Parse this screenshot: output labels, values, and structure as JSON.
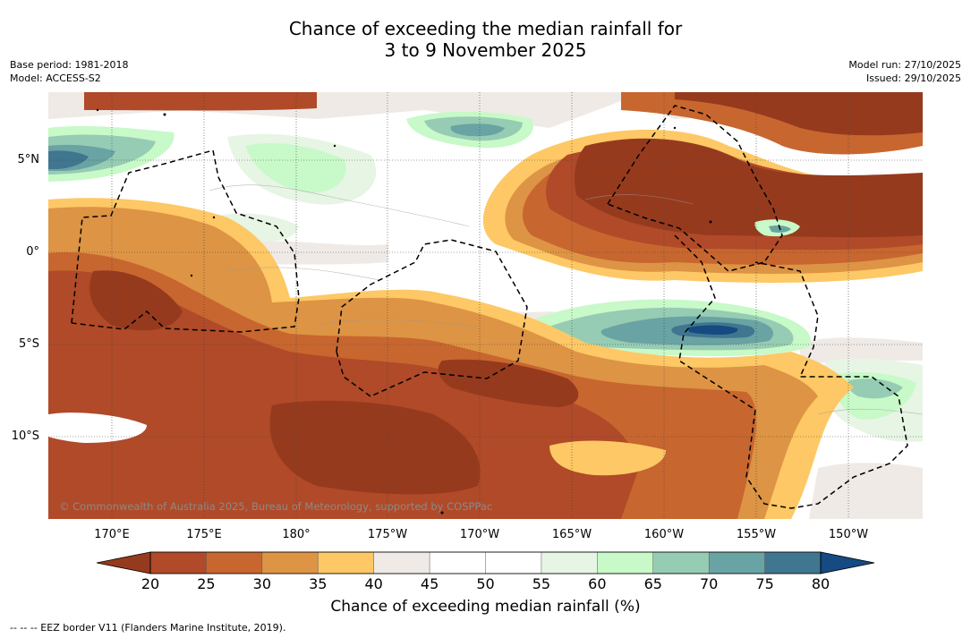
{
  "title": {
    "line1": "Chance of exceeding the median rainfall for",
    "line2": "3 to 9 November 2025"
  },
  "meta_left": {
    "base_period": "Base period: 1981-2018",
    "model": "Model: ACCESS-S2"
  },
  "meta_right": {
    "model_run": "Model run: 27/10/2025",
    "issued": "Issued: 29/10/2025"
  },
  "copyright": "© Commonwealth of Australia 2025, Bureau of Meteorology, supported by COSPPac",
  "lat_labels": [
    "5°N",
    "0°",
    "5°S",
    "10°S"
  ],
  "lon_labels": [
    "170°E",
    "175°E",
    "180°",
    "175°W",
    "170°W",
    "165°W",
    "160°W",
    "155°W",
    "150°W"
  ],
  "colorbar": {
    "ticks": [
      "20",
      "25",
      "30",
      "35",
      "40",
      "45",
      "50",
      "55",
      "60",
      "65",
      "70",
      "75",
      "80"
    ],
    "colors": [
      "#b04a28",
      "#c8662f",
      "#dd9444",
      "#fdc865",
      "#efeae6",
      "#ffffff",
      "#ffffff",
      "#e7f5e4",
      "#c8f9c8",
      "#96ccb3",
      "#6aa3a3",
      "#40768f"
    ],
    "under_color": "#963a1e",
    "over_color": "#154a82",
    "label": "Chance of exceeding median rainfall (%)"
  },
  "legend_note": "--  --  -- EEZ border V11 (Flanders Marine Institute, 2019)."
}
